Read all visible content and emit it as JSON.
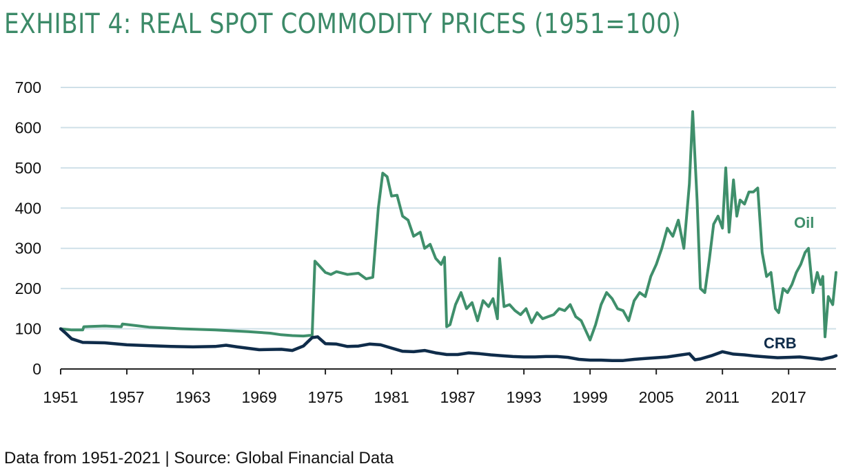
{
  "title": "EXHIBIT 4: REAL SPOT COMMODITY PRICES (1951=100)",
  "footnote": "Data from 1951-2021 | Source: Global Financial Data",
  "colors": {
    "title": "#3c8a68",
    "oil": "#3f8f6b",
    "crb": "#0f2c4a",
    "grid": "#cfe0e8",
    "axis": "#222222"
  },
  "chart_data": {
    "type": "line",
    "title": "EXHIBIT 4: REAL SPOT COMMODITY PRICES (1951=100)",
    "xlabel": "",
    "ylabel": "",
    "xlim": [
      1951,
      2021.3
    ],
    "ylim": [
      0,
      700
    ],
    "yticks": [
      0,
      100,
      200,
      300,
      400,
      500,
      600,
      700
    ],
    "xticks": [
      1951,
      1957,
      1963,
      1969,
      1975,
      1981,
      1987,
      1993,
      1999,
      2005,
      2011,
      2017
    ],
    "grid": true,
    "legend": "none",
    "series": [
      {
        "name": "Oil",
        "x": [
          1951,
          1951.7,
          1952.0,
          1953.0,
          1953.1,
          1955.0,
          1956.5,
          1956.6,
          1959,
          1962,
          1965,
          1968,
          1970,
          1971,
          1972,
          1973.0,
          1973.8,
          1974.05,
          1974.5,
          1975.0,
          1975.5,
          1976.0,
          1977.0,
          1978.0,
          1978.7,
          1979.3,
          1979.8,
          1980.2,
          1980.6,
          1981.0,
          1981.5,
          1982.0,
          1982.5,
          1983.0,
          1983.6,
          1984.0,
          1984.5,
          1985.0,
          1985.5,
          1985.8,
          1986.0,
          1986.3,
          1986.8,
          1987.3,
          1987.8,
          1988.3,
          1988.8,
          1989.3,
          1989.8,
          1990.2,
          1990.6,
          1990.8,
          1991.2,
          1991.7,
          1992.2,
          1992.7,
          1993.2,
          1993.7,
          1994.2,
          1994.7,
          1995.2,
          1995.7,
          1996.2,
          1996.7,
          1997.2,
          1997.7,
          1998.2,
          1998.7,
          1999.0,
          1999.5,
          2000.0,
          2000.5,
          2001.0,
          2001.5,
          2002.0,
          2002.5,
          2003.0,
          2003.5,
          2004.0,
          2004.5,
          2005.0,
          2005.5,
          2006.0,
          2006.5,
          2007.0,
          2007.5,
          2008.0,
          2008.3,
          2008.7,
          2009.0,
          2009.4,
          2009.8,
          2010.2,
          2010.6,
          2011.0,
          2011.3,
          2011.6,
          2012.0,
          2012.3,
          2012.6,
          2013.0,
          2013.4,
          2013.8,
          2014.2,
          2014.6,
          2015.0,
          2015.4,
          2015.8,
          2016.1,
          2016.5,
          2016.9,
          2017.3,
          2017.7,
          2018.1,
          2018.5,
          2018.8,
          2019.2,
          2019.6,
          2019.9,
          2020.1,
          2020.3,
          2020.6,
          2021.0,
          2021.3
        ],
        "values": [
          100,
          98,
          97,
          97,
          105,
          107,
          105,
          112,
          104,
          100,
          97,
          93,
          89,
          85,
          83,
          82,
          84,
          268,
          255,
          240,
          235,
          242,
          235,
          238,
          224,
          228,
          400,
          487,
          478,
          430,
          432,
          380,
          370,
          330,
          340,
          300,
          310,
          275,
          260,
          278,
          105,
          110,
          160,
          190,
          150,
          165,
          120,
          170,
          155,
          175,
          125,
          275,
          155,
          160,
          145,
          135,
          150,
          115,
          140,
          125,
          130,
          135,
          150,
          145,
          160,
          130,
          120,
          90,
          72,
          110,
          160,
          190,
          175,
          150,
          145,
          120,
          170,
          190,
          180,
          230,
          260,
          300,
          350,
          330,
          370,
          300,
          460,
          640,
          420,
          200,
          190,
          270,
          360,
          380,
          350,
          500,
          340,
          470,
          380,
          420,
          410,
          440,
          440,
          450,
          290,
          230,
          240,
          150,
          140,
          200,
          190,
          210,
          240,
          260,
          290,
          300,
          190,
          240,
          210,
          230,
          80,
          180,
          160,
          240
        ]
      },
      {
        "name": "CRB",
        "x": [
          1951,
          1951.5,
          1952,
          1953,
          1955,
          1957,
          1959,
          1961,
          1963,
          1965,
          1966,
          1967,
          1969,
          1971,
          1972,
          1973,
          1973.8,
          1974.3,
          1975,
          1976,
          1977,
          1978,
          1979,
          1980,
          1981,
          1982,
          1983,
          1984,
          1985,
          1986,
          1987,
          1988,
          1989,
          1990,
          1991,
          1992,
          1993,
          1994,
          1995,
          1996,
          1997,
          1998,
          1999,
          2000,
          2001,
          2002,
          2003,
          2004,
          2005,
          2006,
          2007,
          2008,
          2008.5,
          2009,
          2010,
          2011,
          2012,
          2013,
          2014,
          2015,
          2016,
          2017,
          2018,
          2019,
          2020,
          2021,
          2021.3
        ],
        "values": [
          100,
          88,
          75,
          66,
          65,
          60,
          58,
          56,
          55,
          56,
          59,
          55,
          48,
          49,
          46,
          57,
          78,
          80,
          63,
          62,
          56,
          57,
          62,
          60,
          52,
          44,
          43,
          46,
          40,
          36,
          36,
          40,
          38,
          35,
          33,
          31,
          30,
          30,
          31,
          31,
          29,
          24,
          22,
          22,
          21,
          21,
          24,
          26,
          28,
          30,
          34,
          38,
          23,
          25,
          33,
          43,
          37,
          35,
          32,
          30,
          28,
          29,
          30,
          27,
          24,
          30,
          33
        ]
      }
    ]
  }
}
